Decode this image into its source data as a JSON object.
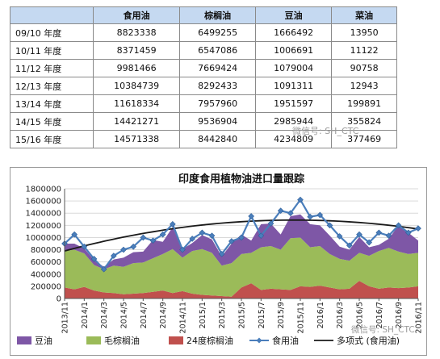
{
  "table": {
    "columns": [
      "",
      "食用油",
      "棕榈油",
      "豆油",
      "菜油"
    ],
    "rows": [
      {
        "year": "09/10 年度",
        "edible": "8823338",
        "palm": "6499255",
        "soy": "1666492",
        "rapeseed": "13950"
      },
      {
        "year": "10/11 年度",
        "edible": "8371459",
        "palm": "6547086",
        "soy": "1006691",
        "rapeseed": "11122"
      },
      {
        "year": "11/12 年度",
        "edible": "9981466",
        "palm": "7669424",
        "soy": "1079004",
        "rapeseed": "90758"
      },
      {
        "year": "12/13 年度",
        "edible": "10384739",
        "palm": "8292433",
        "soy": "1091311",
        "rapeseed": "12943"
      },
      {
        "year": "13/14 年度",
        "edible": "11618334",
        "palm": "7957960",
        "soy": "1951597",
        "rapeseed": "199891"
      },
      {
        "year": "14/15 年度",
        "edible": "14421271",
        "palm": "9536904",
        "soy": "2985944",
        "rapeseed": "355824"
      },
      {
        "year": "15/16 年度",
        "edible": "14571338",
        "palm": "8442840",
        "soy": "4234809",
        "rapeseed": "377469"
      }
    ]
  },
  "watermarks": {
    "table": "微信号: SH_CTC",
    "chart": "微信号: SH_CTC"
  },
  "colors": {
    "soy": "#7e57a6",
    "crude_palm": "#9bbb59",
    "palm24": "#c0504d",
    "edible_line": "#4a7ebb",
    "trend": "#1a1a1a",
    "header_bg": "#c5d9f1"
  },
  "chart_data": {
    "type": "area",
    "title": "印度食用植物油进口量跟踪",
    "y_ticks": [
      "0",
      "200000",
      "400000",
      "600000",
      "800000",
      "1000000",
      "1200000",
      "1400000",
      "1600000",
      "1800000"
    ],
    "ylim": [
      0,
      1800000
    ],
    "x_tick_labels": [
      "2013/11",
      "2014/1",
      "2014/3",
      "2014/5",
      "2014/7",
      "2014/9",
      "2014/11",
      "2015/1",
      "2015/3",
      "2015/5",
      "2015/7",
      "2015/9",
      "2015/11",
      "2016/1",
      "2016/3",
      "2016/5",
      "2016/7",
      "2016/9",
      "2016/11"
    ],
    "months": [
      "2013/11",
      "2013/12",
      "2014/1",
      "2014/2",
      "2014/3",
      "2014/4",
      "2014/5",
      "2014/6",
      "2014/7",
      "2014/8",
      "2014/9",
      "2014/10",
      "2014/11",
      "2014/12",
      "2015/1",
      "2015/2",
      "2015/3",
      "2015/4",
      "2015/5",
      "2015/6",
      "2015/7",
      "2015/8",
      "2015/9",
      "2015/10",
      "2015/11",
      "2015/12",
      "2016/1",
      "2016/2",
      "2016/3",
      "2016/4",
      "2016/5",
      "2016/6",
      "2016/7",
      "2016/8",
      "2016/9",
      "2016/10",
      "2016/11"
    ],
    "series": [
      {
        "name": "24度棕榈油",
        "key": "palm24",
        "values": [
          180000,
          150000,
          190000,
          130000,
          100000,
          90000,
          70000,
          80000,
          90000,
          110000,
          130000,
          90000,
          120000,
          80000,
          60000,
          50000,
          40000,
          30000,
          180000,
          250000,
          140000,
          160000,
          150000,
          140000,
          200000,
          190000,
          210000,
          180000,
          150000,
          160000,
          290000,
          200000,
          160000,
          180000,
          170000,
          180000,
          200000
        ]
      },
      {
        "name": "毛棕榈油",
        "key": "crude_palm",
        "values": [
          600000,
          650000,
          550000,
          420000,
          380000,
          450000,
          450000,
          500000,
          500000,
          550000,
          600000,
          720000,
          550000,
          700000,
          750000,
          700000,
          500000,
          550000,
          550000,
          500000,
          700000,
          700000,
          650000,
          850000,
          800000,
          650000,
          650000,
          550000,
          500000,
          460000,
          460000,
          500000,
          620000,
          650000,
          600000,
          550000,
          550000
        ]
      },
      {
        "name": "豆油",
        "key": "soy",
        "values": [
          120000,
          100000,
          80000,
          80000,
          40000,
          100000,
          150000,
          180000,
          180000,
          300000,
          200000,
          360000,
          140000,
          130000,
          230000,
          220000,
          150000,
          320000,
          320000,
          200000,
          380000,
          370000,
          250000,
          360000,
          380000,
          380000,
          340000,
          300000,
          200000,
          180000,
          260000,
          140000,
          100000,
          150000,
          430000,
          350000,
          200000
        ]
      }
    ],
    "line": {
      "name": "食用油",
      "values": [
        900000,
        1050000,
        850000,
        650000,
        480000,
        700000,
        800000,
        850000,
        1000000,
        950000,
        1050000,
        1220000,
        800000,
        980000,
        1080000,
        1030000,
        730000,
        940000,
        1000000,
        1350000,
        1030000,
        1230000,
        1440000,
        1400000,
        1620000,
        1340000,
        1370000,
        1200000,
        1020000,
        870000,
        1050000,
        920000,
        1080000,
        1030000,
        1200000,
        1080000,
        1150000
      ]
    },
    "trend": {
      "name": "多项式 (食用油)",
      "values": [
        780000,
        1260000,
        1140000
      ]
    },
    "legend_position": "bottom"
  }
}
